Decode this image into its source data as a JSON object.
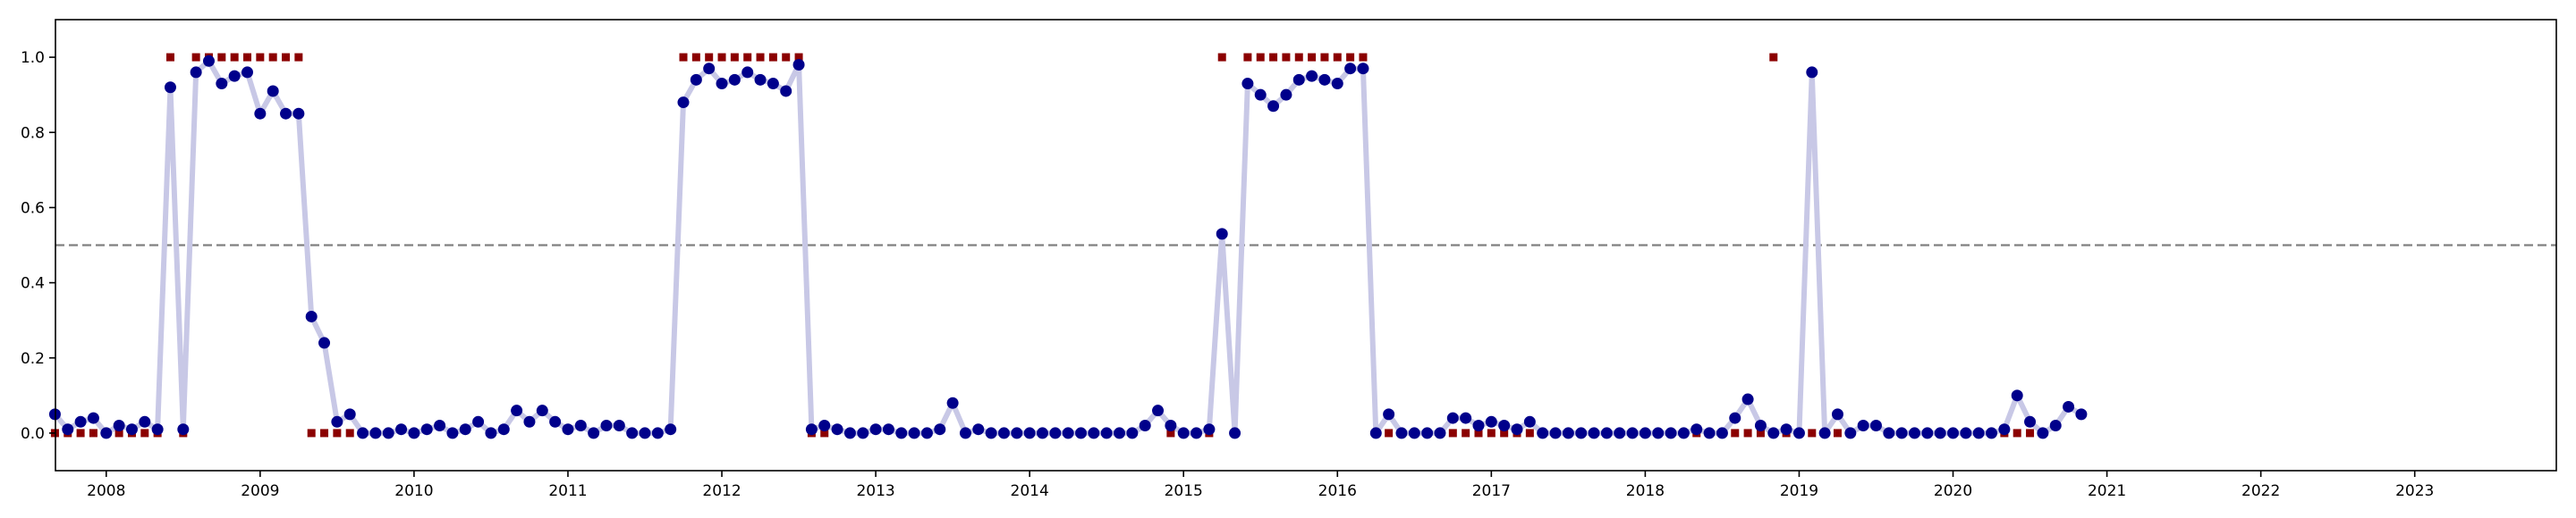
{
  "chart_data": {
    "type": "scatter",
    "title": "",
    "xlabel": "",
    "ylabel": "",
    "xlim": [
      2007.67,
      2023.92
    ],
    "ylim": [
      -0.1,
      1.1
    ],
    "x_ticks": [
      2008,
      2009,
      2010,
      2011,
      2012,
      2013,
      2014,
      2015,
      2016,
      2017,
      2018,
      2019,
      2020,
      2021,
      2022,
      2023
    ],
    "x_tick_labels": [
      "2008",
      "2009",
      "2010",
      "2011",
      "2012",
      "2013",
      "2014",
      "2015",
      "2016",
      "2017",
      "2018",
      "2019",
      "2020",
      "2021",
      "2022",
      "2023"
    ],
    "y_ticks": [
      0.0,
      0.2,
      0.4,
      0.6,
      0.8,
      1.0
    ],
    "y_tick_labels": [
      "0.0",
      "0.2",
      "0.4",
      "0.6",
      "0.8",
      "1.0"
    ],
    "threshold": 0.5,
    "grid": false,
    "legend": "none",
    "colors": {
      "probability_line": "#c8c8e6",
      "probability_point": "#00008b",
      "label_marker": "#8b0000",
      "threshold_line": "#808080",
      "axes": "#000000"
    },
    "x_start": "2007-09",
    "x_step": "monthly",
    "series": [
      {
        "values": [
          0.05,
          0.01,
          0.03,
          0.04,
          0.0,
          0.02,
          0.01,
          0.03,
          0.01,
          0.92,
          0.01,
          0.96,
          0.99,
          0.93,
          0.95,
          0.96,
          0.85,
          0.91,
          0.85,
          0.85,
          0.31,
          0.24,
          0.03,
          0.05,
          0.0,
          0.0,
          0.0,
          0.01,
          0.0,
          0.01,
          0.02,
          0.0,
          0.01,
          0.03,
          0.0,
          0.01,
          0.06,
          0.03,
          0.06,
          0.03,
          0.01,
          0.02,
          0.0,
          0.02,
          0.02,
          0.0,
          0.0,
          0.0,
          0.01,
          0.88,
          0.94,
          0.97,
          0.93,
          0.94,
          0.96,
          0.94,
          0.93,
          0.91,
          0.98,
          0.01,
          0.02,
          0.01,
          0.0,
          0.0,
          0.01,
          0.01,
          0.0,
          0.0,
          0.0,
          0.01,
          0.08,
          0.0,
          0.01,
          0.0,
          0.0,
          0.0,
          0.0,
          0.0,
          0.0,
          0.0,
          0.0,
          0.0,
          0.0,
          0.0,
          0.0,
          0.02,
          0.06,
          0.02,
          0.0,
          0.0,
          0.01,
          0.53,
          0.0,
          0.93,
          0.9,
          0.87,
          0.9,
          0.94,
          0.95,
          0.94,
          0.93,
          0.97,
          0.97,
          0.0,
          0.05,
          0.0,
          0.0,
          0.0,
          0.0,
          0.04,
          0.04,
          0.02,
          0.03,
          0.02,
          0.01,
          0.03,
          0.0,
          0.0,
          0.0,
          0.0,
          0.0,
          0.0,
          0.0,
          0.0,
          0.0,
          0.0,
          0.0,
          0.0,
          0.01,
          0.0,
          0.0,
          0.04,
          0.09,
          0.02,
          0.0,
          0.01,
          0.0,
          0.96,
          0.0,
          0.05,
          0.0,
          0.02,
          0.02,
          0.0,
          0.0,
          0.0,
          0.0,
          0.0,
          0.0,
          0.0,
          0.0,
          0.0,
          0.01,
          0.1,
          0.03,
          0.0,
          0.02,
          0.07,
          0.05
        ]
      },
      {
        "values": [
          0,
          0,
          0,
          0,
          0,
          0,
          0,
          0,
          0,
          1,
          0,
          1,
          1,
          1,
          1,
          1,
          1,
          1,
          1,
          1,
          0,
          0,
          0,
          0,
          null,
          null,
          null,
          null,
          null,
          null,
          null,
          null,
          null,
          null,
          null,
          null,
          null,
          null,
          null,
          null,
          null,
          null,
          null,
          null,
          null,
          null,
          null,
          null,
          null,
          1,
          1,
          1,
          1,
          1,
          1,
          1,
          1,
          1,
          1,
          0,
          0,
          null,
          null,
          null,
          null,
          null,
          null,
          null,
          0,
          null,
          null,
          null,
          null,
          null,
          null,
          null,
          null,
          null,
          null,
          null,
          null,
          null,
          null,
          null,
          null,
          null,
          null,
          0,
          0,
          0,
          0,
          1,
          0,
          1,
          1,
          1,
          1,
          1,
          1,
          1,
          1,
          1,
          1,
          0,
          0,
          null,
          null,
          null,
          null,
          0,
          0,
          0,
          0,
          0,
          0,
          0,
          0,
          0,
          0,
          null,
          null,
          null,
          null,
          null,
          null,
          null,
          null,
          null,
          0,
          0,
          0,
          0,
          0,
          0,
          1,
          0,
          0,
          0,
          0,
          0,
          null,
          null,
          null,
          null,
          null,
          null,
          null,
          null,
          null,
          0,
          0,
          0,
          0,
          0,
          0
        ]
      }
    ]
  }
}
